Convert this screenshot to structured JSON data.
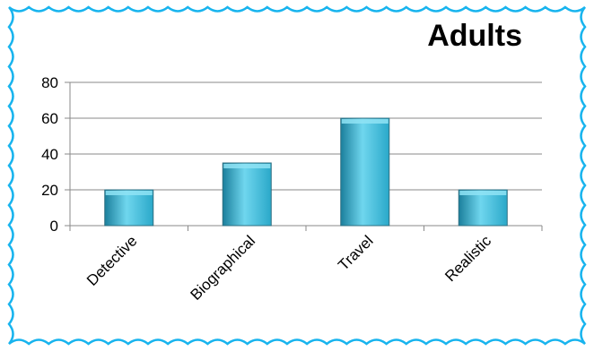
{
  "chart_data": {
    "type": "bar",
    "title": "Adults",
    "categories": [
      "Detective",
      "Biographical",
      "Travel",
      "Realistic"
    ],
    "values": [
      20,
      35,
      60,
      20
    ],
    "xlabel": "",
    "ylabel": "",
    "ylim": [
      0,
      80
    ],
    "yticks": [
      "0",
      "20",
      "40",
      "60",
      "80"
    ],
    "grid": true,
    "legend": "none",
    "bar_color": "#2aa8c9",
    "bar_color_light": "#6fd6ee",
    "bar_color_dark": "#1b7f9c"
  },
  "frame": {
    "border_color": "#18b4ee"
  }
}
